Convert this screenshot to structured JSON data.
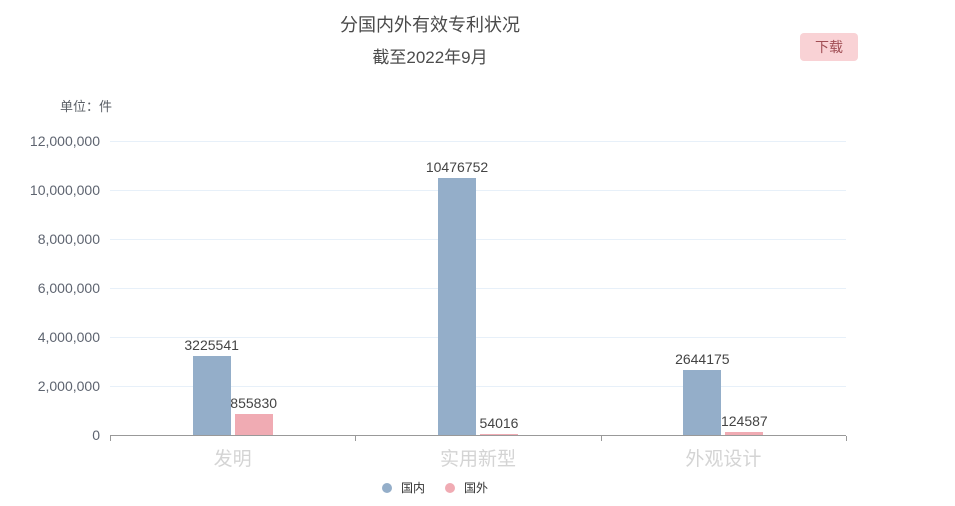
{
  "header": {
    "title": "分国内外有效专利状况",
    "subtitle": "截至2022年9月"
  },
  "toolbar": {
    "download_label": "下载",
    "download_bg_color": "#f9d2d5",
    "download_text_color": "#a14f55"
  },
  "chart_data": {
    "type": "bar",
    "title": "分国内外有效专利状况",
    "subtitle": "截至2022年9月",
    "unit_label": "单位：件",
    "categories": [
      "发明",
      "实用新型",
      "外观设计"
    ],
    "series": [
      {
        "name": "国内",
        "color": "#94aec9",
        "values": [
          3225541,
          10476752,
          2644175
        ]
      },
      {
        "name": "国外",
        "color": "#f0abb3",
        "values": [
          855830,
          54016,
          124587
        ]
      }
    ],
    "value_labels": [
      [
        "3225541",
        "10476752",
        "2644175"
      ],
      [
        "855830",
        "54016",
        "124587"
      ]
    ],
    "ylabel": "",
    "xlabel": "",
    "ylim": [
      0,
      12000000
    ],
    "ytick_step": 2000000,
    "ytick_labels": [
      "0",
      "2,000,000",
      "4,000,000",
      "6,000,000",
      "8,000,000",
      "10,000,000",
      "12,000,000"
    ],
    "grid": true,
    "gridline_color": "#e7f0f9",
    "axis_color": "#999999",
    "legend_position": "bottom"
  }
}
